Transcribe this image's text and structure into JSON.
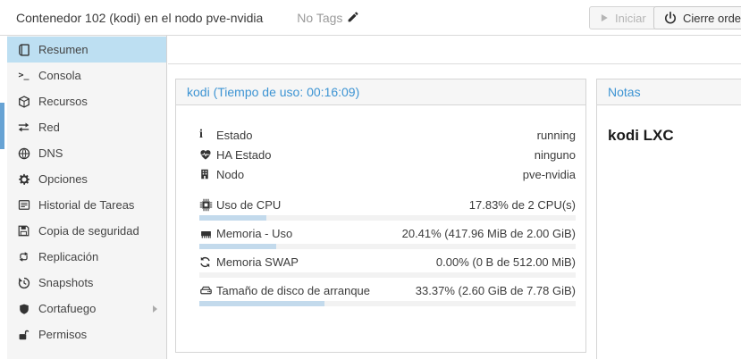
{
  "header": {
    "title": "Contenedor 102 (kodi) en el nodo pve-nvidia",
    "tags_label": "No Tags",
    "buttons": {
      "start": "Iniciar",
      "shutdown": "Cierre ordenado"
    }
  },
  "sidebar": {
    "items": [
      {
        "label": "Resumen",
        "icon": "book-icon",
        "selected": true
      },
      {
        "label": "Consola",
        "icon": "terminal-icon",
        "selected": false
      },
      {
        "label": "Recursos",
        "icon": "cube-icon",
        "selected": false
      },
      {
        "label": "Red",
        "icon": "exchange-icon",
        "selected": false
      },
      {
        "label": "DNS",
        "icon": "globe-icon",
        "selected": false
      },
      {
        "label": "Opciones",
        "icon": "gear-icon",
        "selected": false
      },
      {
        "label": "Historial de Tareas",
        "icon": "list-icon",
        "selected": false
      },
      {
        "label": "Copia de seguridad",
        "icon": "floppy-icon",
        "selected": false
      },
      {
        "label": "Replicación",
        "icon": "retweet-icon",
        "selected": false
      },
      {
        "label": "Snapshots",
        "icon": "history-icon",
        "selected": false
      },
      {
        "label": "Cortafuego",
        "icon": "shield-icon",
        "selected": false,
        "has_submenu": true
      },
      {
        "label": "Permisos",
        "icon": "unlock-icon",
        "selected": false
      }
    ]
  },
  "status_panel": {
    "title": "kodi (Tiempo de uso: 00:16:09)",
    "rows": [
      {
        "icon": "info-icon",
        "label": "Estado",
        "value": "running"
      },
      {
        "icon": "heartbeat-icon",
        "label": "HA Estado",
        "value": "ninguno"
      },
      {
        "icon": "building-icon",
        "label": "Nodo",
        "value": "pve-nvidia"
      }
    ],
    "metrics": [
      {
        "icon": "cpu-icon",
        "label": "Uso de CPU",
        "value": "17.83% de 2 CPU(s)",
        "percent": 17.83
      },
      {
        "icon": "memory-icon",
        "label": "Memoria - Uso",
        "value": "20.41% (417.96 MiB de 2.00 GiB)",
        "percent": 20.41
      },
      {
        "icon": "swap-icon",
        "label": "Memoria SWAP",
        "value": "0.00% (0 B de 512.00 MiB)",
        "percent": 0
      },
      {
        "icon": "disk-icon",
        "label": "Tamaño de disco de arranque",
        "value": "33.37% (2.60 GiB de 7.78 GiB)",
        "percent": 33.37
      }
    ]
  },
  "notes_panel": {
    "title": "Notas",
    "content": "kodi LXC"
  },
  "colors": {
    "accent_blue": "#3d94d3",
    "selection_blue": "#bddff2",
    "progress_fill": "#c3daec",
    "tree_selection": "#67a3d4"
  }
}
